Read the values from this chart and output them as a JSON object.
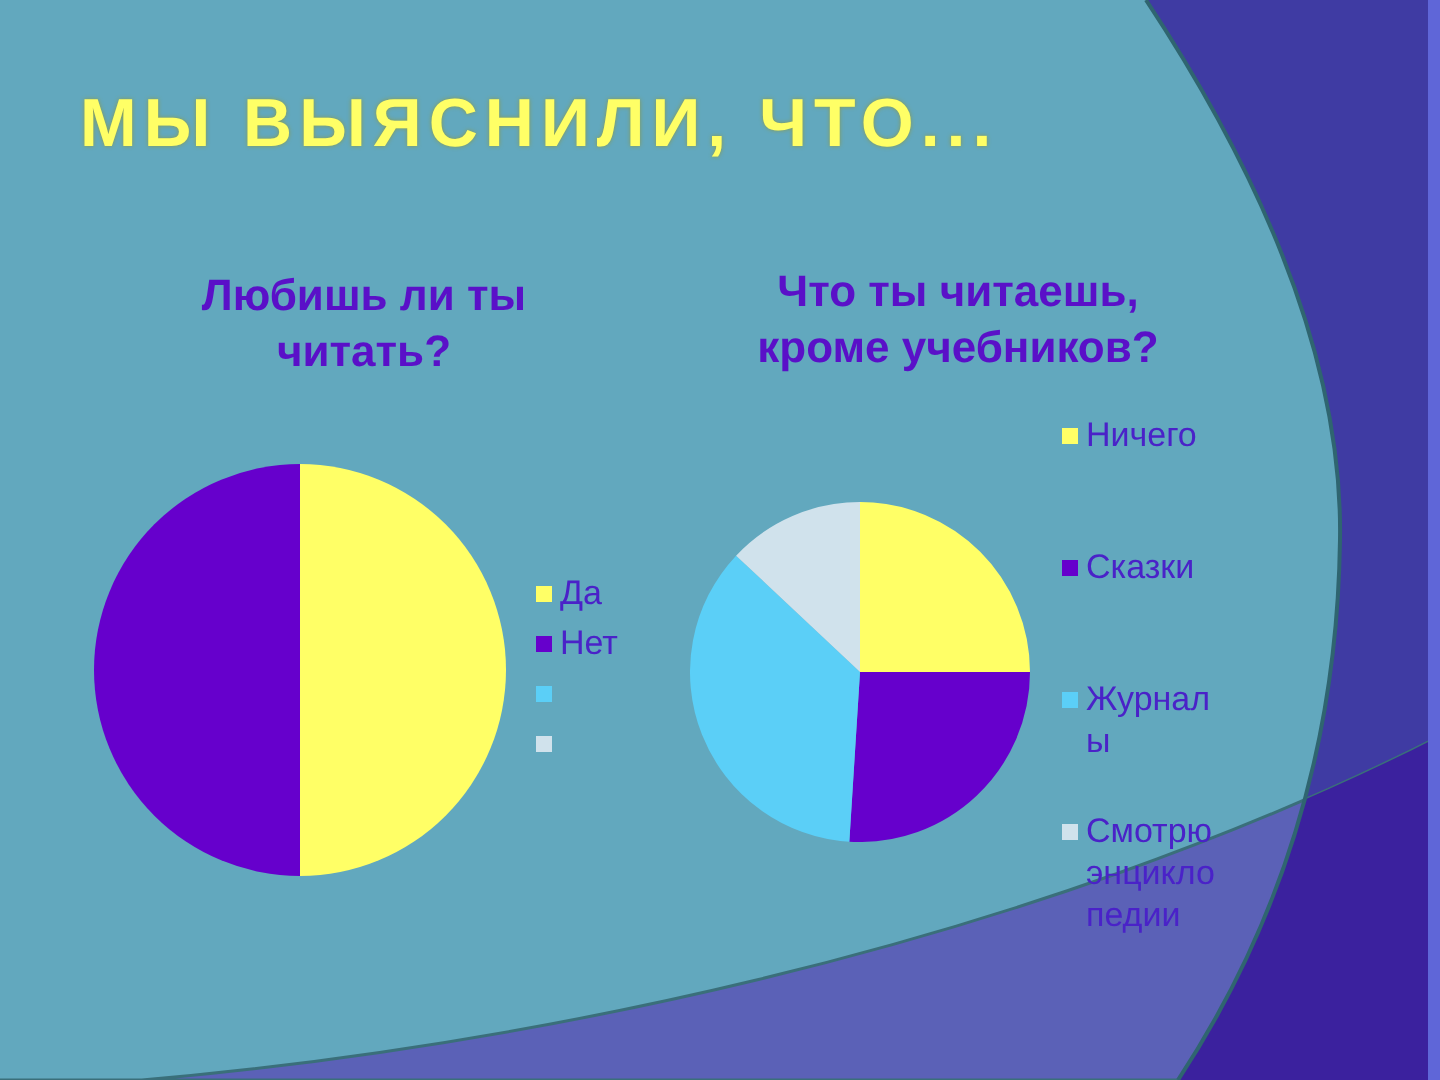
{
  "chart_data": [
    {
      "type": "pie",
      "title": "Любишь ли ты читать?",
      "categories": [
        "Да",
        "Нет",
        null,
        null
      ],
      "values": [
        50,
        50,
        null,
        null
      ],
      "colors": [
        "#ffff66",
        "#6600cc",
        "#5bcff7",
        "#d0e2ec"
      ],
      "legend": "right",
      "annotations": [
        "МЫ ВЫЯСНИЛИ, ЧТО..."
      ]
    },
    {
      "type": "pie",
      "title": "Что ты читаешь, кроме учебников?",
      "categories": [
        "Ничего",
        "Сказки",
        "Журналы",
        "Смотрю энциклопедии"
      ],
      "values": [
        25,
        26,
        36,
        13
      ],
      "colors": [
        "#ffff66",
        "#6600cc",
        "#5bcff7",
        "#d0e2ec"
      ],
      "legend": "right"
    }
  ]
}
